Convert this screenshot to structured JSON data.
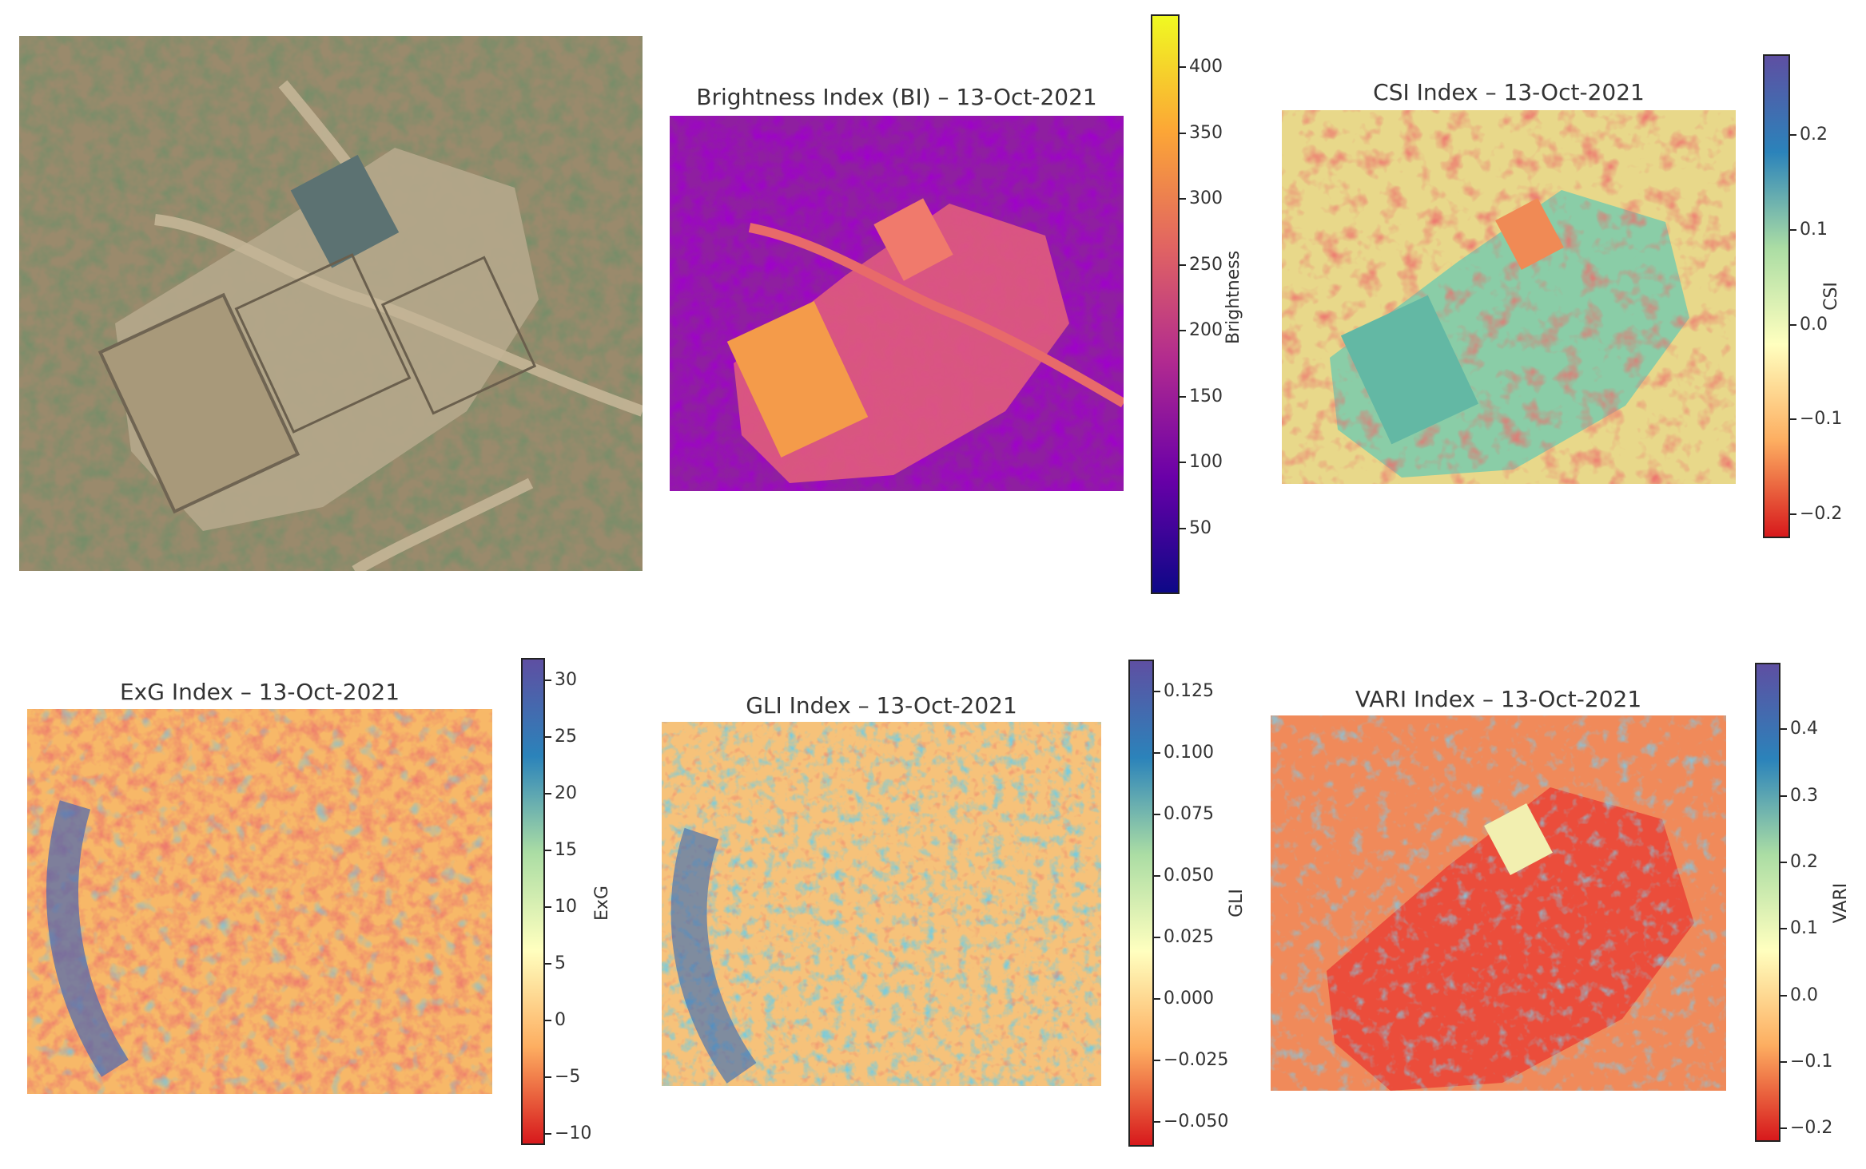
{
  "panels": {
    "rgb": {},
    "bi": {
      "title": "Brightness Index (BI) – 13-Oct-2021",
      "colorbar_label": "Brightness",
      "ticks": [
        "50",
        "100",
        "150",
        "200",
        "250",
        "300",
        "350",
        "400"
      ],
      "tick_values": [
        50,
        100,
        150,
        200,
        250,
        300,
        350,
        400
      ],
      "range": [
        0,
        440
      ],
      "colors": [
        "#0d0887",
        "#6a00a8",
        "#b12a90",
        "#e16462",
        "#fca636",
        "#f0f921"
      ]
    },
    "csi": {
      "title": "CSI Index – 13-Oct-2021",
      "colorbar_label": "CSI",
      "ticks": [
        "−0.2",
        "−0.1",
        "0.0",
        "0.1",
        "0.2"
      ],
      "tick_values": [
        -0.2,
        -0.1,
        0.0,
        0.1,
        0.2
      ],
      "range": [
        -0.225,
        0.285
      ],
      "colors": [
        "#d7191c",
        "#fdae61",
        "#ffffbf",
        "#abdda4",
        "#2b83ba",
        "#5e4fa2"
      ]
    },
    "exg": {
      "title": "ExG Index – 13-Oct-2021",
      "colorbar_label": "ExG",
      "ticks": [
        "−10",
        "−5",
        "0",
        "5",
        "10",
        "15",
        "20",
        "25",
        "30"
      ],
      "tick_values": [
        -10,
        -5,
        0,
        5,
        10,
        15,
        20,
        25,
        30
      ],
      "range": [
        -11,
        32
      ],
      "colors": [
        "#d7191c",
        "#fdae61",
        "#ffffbf",
        "#abdda4",
        "#2b83ba",
        "#5e4fa2"
      ]
    },
    "gli": {
      "title": "GLI Index – 13-Oct-2021",
      "colorbar_label": "GLI",
      "ticks": [
        "−0.050",
        "−0.025",
        "0.000",
        "0.025",
        "0.050",
        "0.075",
        "0.100",
        "0.125"
      ],
      "tick_values": [
        -0.05,
        -0.025,
        0.0,
        0.025,
        0.05,
        0.075,
        0.1,
        0.125
      ],
      "range": [
        -0.06,
        0.138
      ],
      "colors": [
        "#d7191c",
        "#fdae61",
        "#ffffbf",
        "#abdda4",
        "#2b83ba",
        "#5e4fa2"
      ]
    },
    "vari": {
      "title": "VARI Index – 13-Oct-2021",
      "colorbar_label": "VARI",
      "ticks": [
        "−0.2",
        "−0.1",
        "0.0",
        "0.1",
        "0.2",
        "0.3",
        "0.4"
      ],
      "tick_values": [
        -0.2,
        -0.1,
        0.0,
        0.1,
        0.2,
        0.3,
        0.4
      ],
      "range": [
        -0.22,
        0.5
      ],
      "colors": [
        "#d7191c",
        "#fdae61",
        "#ffffbf",
        "#abdda4",
        "#2b83ba",
        "#5e4fa2"
      ]
    }
  }
}
